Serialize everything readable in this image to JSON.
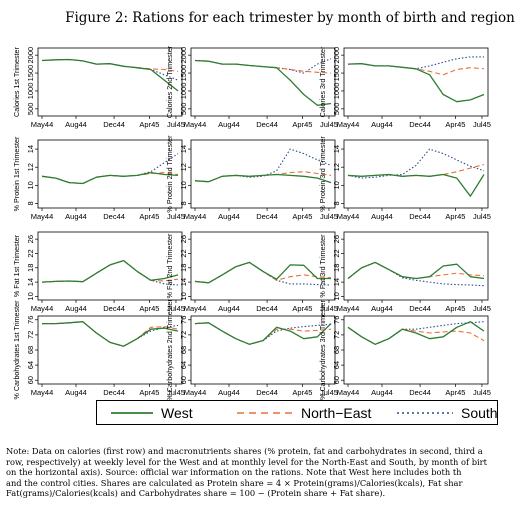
{
  "figure": {
    "title": "Figure 2: Rations for each trimester by month of birth and region",
    "x_ticks": [
      "May44",
      "Aug44",
      "Dec44",
      "Apr45",
      "Jul45"
    ],
    "colors": {
      "West": "#2e7d32",
      "North-East": "#e8703a",
      "South": "#2a4a8a"
    }
  },
  "legend": {
    "west": "West",
    "north_east": "North−East",
    "south": "South"
  },
  "note": {
    "line1": "Note: Data on calories (first row) and macronutrients shares (% protein, fat and carbohydrates in second, third a",
    "line2": "row, respectively) at weekly level for the West and at monthly level for the North-East and South, by month of birt",
    "line3": "on the horizontal axis). Source: official war information on the rations. Note that West here includes both th",
    "line4": "and the control cities. Shares are calculated as Protein share = 4 × Protein(grams)/Calories(kcals), Fat shar",
    "line5": "Fat(grams)/Calories(kcals) and Carbohydrates share = 100 − (Protein share + Fat share)."
  },
  "chart_data": [
    {
      "type": "line",
      "ylabel": "Calories 1st Trimester",
      "yticks": [
        "500",
        "1000",
        "1500",
        "2000"
      ],
      "ylim": [
        300,
        2200
      ],
      "series": [
        {
          "name": "West",
          "values": [
            1850,
            1870,
            1880,
            1840,
            1750,
            1760,
            1690,
            1650,
            1600,
            1300,
            1000
          ]
        },
        {
          "name": "North-East",
          "values": [
            1850,
            1870,
            1880,
            1840,
            1750,
            1760,
            1690,
            1650,
            1620,
            1600,
            1550
          ]
        },
        {
          "name": "South",
          "values": [
            1850,
            1870,
            1880,
            1840,
            1750,
            1760,
            1690,
            1640,
            1600,
            1450,
            1300
          ]
        }
      ]
    },
    {
      "type": "line",
      "ylabel": "Calories 2nd Trimester",
      "yticks": [
        "500",
        "1000",
        "1500",
        "2000"
      ],
      "ylim": [
        300,
        2200
      ],
      "series": [
        {
          "name": "West",
          "values": [
            1850,
            1830,
            1750,
            1750,
            1710,
            1680,
            1650,
            1300,
            900,
            600,
            650
          ]
        },
        {
          "name": "North-East",
          "values": [
            1850,
            1830,
            1750,
            1750,
            1710,
            1680,
            1650,
            1600,
            1550,
            1520,
            1500
          ]
        },
        {
          "name": "South",
          "values": [
            1850,
            1830,
            1750,
            1750,
            1710,
            1680,
            1650,
            1600,
            1500,
            1750,
            1900
          ]
        }
      ]
    },
    {
      "type": "line",
      "ylabel": "Calories 3rd Trimester",
      "yticks": [
        "500",
        "1000",
        "1500",
        "2000"
      ],
      "ylim": [
        300,
        2200
      ],
      "series": [
        {
          "name": "West",
          "values": [
            1750,
            1760,
            1700,
            1700,
            1660,
            1620,
            1450,
            900,
            700,
            750,
            900
          ]
        },
        {
          "name": "North-East",
          "values": [
            1750,
            1760,
            1700,
            1700,
            1660,
            1620,
            1550,
            1450,
            1600,
            1650,
            1620
          ]
        },
        {
          "name": "South",
          "values": [
            1750,
            1760,
            1700,
            1700,
            1660,
            1620,
            1700,
            1800,
            1900,
            1950,
            1950
          ]
        }
      ]
    },
    {
      "type": "line",
      "ylabel": "% Protein 1st Trimester",
      "yticks": [
        "8",
        "10",
        "12",
        "14"
      ],
      "ylim": [
        7.5,
        15
      ],
      "series": [
        {
          "name": "West",
          "values": [
            11,
            10.8,
            10.3,
            10.2,
            10.9,
            11.1,
            11.0,
            11.1,
            11.4,
            11.2,
            11.1
          ]
        },
        {
          "name": "North-East",
          "values": [
            11,
            10.8,
            10.3,
            10.2,
            10.9,
            11.1,
            11.0,
            11.1,
            11.3,
            11.4,
            11.2
          ]
        },
        {
          "name": "South",
          "values": [
            11,
            10.8,
            10.3,
            10.2,
            10.9,
            11.1,
            11.0,
            11.1,
            11.5,
            12.5,
            13.5
          ]
        }
      ]
    },
    {
      "type": "line",
      "ylabel": "% Protein 2nd Trimester",
      "yticks": [
        "8",
        "10",
        "12",
        "14"
      ],
      "ylim": [
        7.5,
        15
      ],
      "series": [
        {
          "name": "West",
          "values": [
            10.5,
            10.4,
            11.0,
            11.1,
            11.0,
            11.1,
            11.2,
            11.1,
            11.0,
            10.8,
            10.3
          ]
        },
        {
          "name": "North-East",
          "values": [
            10.5,
            10.4,
            11.0,
            11.1,
            11.0,
            11.1,
            11.2,
            11.4,
            11.5,
            11.3,
            11.1
          ]
        },
        {
          "name": "South",
          "values": [
            10.5,
            10.4,
            11.0,
            11.1,
            10.9,
            11.0,
            11.6,
            14.0,
            13.5,
            12.8,
            12.2
          ]
        }
      ]
    },
    {
      "type": "line",
      "ylabel": "% Protein 3rd Trimester",
      "yticks": [
        "8",
        "10",
        "12",
        "14"
      ],
      "ylim": [
        7.5,
        15
      ],
      "series": [
        {
          "name": "West",
          "values": [
            11.1,
            11.0,
            11.1,
            11.2,
            11.0,
            11.1,
            11.0,
            11.2,
            10.8,
            8.8,
            11.2
          ]
        },
        {
          "name": "North-East",
          "values": [
            11.1,
            11.0,
            11.1,
            11.2,
            11.0,
            11.1,
            11.0,
            11.2,
            11.5,
            11.9,
            12.3
          ]
        },
        {
          "name": "South",
          "values": [
            11.1,
            10.8,
            10.9,
            11.1,
            11.2,
            12.2,
            14.0,
            13.5,
            12.8,
            12.1,
            11.6
          ]
        }
      ]
    },
    {
      "type": "line",
      "ylabel": "% Fat 1st Trimester",
      "yticks": [
        "10",
        "14",
        "18",
        "22",
        "26"
      ],
      "ylim": [
        9,
        28
      ],
      "series": [
        {
          "name": "West",
          "values": [
            14,
            14.2,
            14.3,
            14.1,
            16.5,
            18.8,
            20,
            17,
            14.5,
            15,
            16
          ]
        },
        {
          "name": "North-East",
          "values": [
            14,
            14.2,
            14.3,
            14.1,
            16.5,
            18.8,
            20,
            17,
            14.5,
            14.3,
            14.8
          ]
        },
        {
          "name": "South",
          "values": [
            14,
            14.2,
            14.3,
            14.1,
            16.5,
            18.8,
            20,
            17,
            14.5,
            13.5,
            13.2
          ]
        }
      ]
    },
    {
      "type": "line",
      "ylabel": "% Fat 2nd Trimester",
      "yticks": [
        "10",
        "14",
        "18",
        "22",
        "26"
      ],
      "ylim": [
        9,
        28
      ],
      "series": [
        {
          "name": "West",
          "values": [
            14.2,
            13.8,
            16,
            18.3,
            19.5,
            17,
            14.8,
            18.8,
            18.7,
            15,
            15
          ]
        },
        {
          "name": "North-East",
          "values": [
            14.2,
            13.8,
            16,
            18.3,
            19.5,
            17,
            14.5,
            15.5,
            16,
            15.5,
            15.2
          ]
        },
        {
          "name": "South",
          "values": [
            14.2,
            13.8,
            16,
            18.3,
            19.5,
            17,
            14.5,
            13.5,
            13.5,
            13.3,
            13.2
          ]
        }
      ]
    },
    {
      "type": "line",
      "ylabel": "% Fat 3rd Trimester",
      "yticks": [
        "10",
        "14",
        "18",
        "22",
        "26"
      ],
      "ylim": [
        9,
        28
      ],
      "series": [
        {
          "name": "West",
          "values": [
            15,
            18,
            19.5,
            17.5,
            15.5,
            15,
            15.5,
            18.5,
            19,
            15.5,
            15
          ]
        },
        {
          "name": "North-East",
          "values": [
            15,
            18,
            19.5,
            17.5,
            15.5,
            15,
            15.5,
            16,
            16.5,
            16,
            15.8
          ]
        },
        {
          "name": "South",
          "values": [
            15,
            18,
            19.5,
            17.5,
            15.2,
            14.5,
            14,
            13.5,
            13.3,
            13.2,
            13
          ]
        }
      ]
    },
    {
      "type": "line",
      "ylabel": "% Carbohydrates 1st Trimester",
      "yticks": [
        "60",
        "64",
        "68",
        "72",
        "76"
      ],
      "ylim": [
        59,
        77
      ],
      "series": [
        {
          "name": "West",
          "values": [
            75,
            75,
            75.2,
            75.5,
            72.5,
            70,
            69,
            71,
            73.5,
            73.8,
            73
          ]
        },
        {
          "name": "North-East",
          "values": [
            75,
            75,
            75.2,
            75.5,
            72.5,
            70,
            69,
            71,
            74,
            74.2,
            73.5
          ]
        },
        {
          "name": "South",
          "values": [
            75,
            75,
            75.2,
            75.5,
            72.5,
            70,
            69,
            71,
            73,
            74,
            74.5
          ]
        }
      ]
    },
    {
      "type": "line",
      "ylabel": "% Carbohydrates 2nd Trimester",
      "yticks": [
        "60",
        "64",
        "68",
        "72",
        "76"
      ],
      "ylim": [
        59,
        77
      ],
      "series": [
        {
          "name": "West",
          "values": [
            75,
            75.2,
            73,
            71,
            69.5,
            70.5,
            74,
            73,
            71,
            71.5,
            75
          ]
        },
        {
          "name": "North-East",
          "values": [
            75,
            75.2,
            73,
            71,
            69.5,
            70.5,
            73.5,
            73.5,
            73,
            73.2,
            73.5
          ]
        },
        {
          "name": "South",
          "values": [
            75,
            75.2,
            73,
            71,
            69.5,
            70.5,
            73,
            73.8,
            74.2,
            74.5,
            74.8
          ]
        }
      ]
    },
    {
      "type": "line",
      "ylabel": "% Carbohydrates 3rd Trimester",
      "yticks": [
        "60",
        "64",
        "68",
        "72",
        "76"
      ],
      "ylim": [
        59,
        77
      ],
      "series": [
        {
          "name": "West",
          "values": [
            74,
            71.5,
            69.5,
            71,
            73.5,
            72.5,
            71,
            71.5,
            74,
            75.5,
            73
          ]
        },
        {
          "name": "North-East",
          "values": [
            74,
            71.5,
            69.5,
            71,
            73.5,
            73,
            72.5,
            72.8,
            73,
            72.5,
            70.5
          ]
        },
        {
          "name": "South",
          "values": [
            74,
            71.5,
            69.5,
            71,
            73.5,
            73.5,
            74,
            74.5,
            75,
            75.2,
            75.5
          ]
        }
      ]
    }
  ]
}
